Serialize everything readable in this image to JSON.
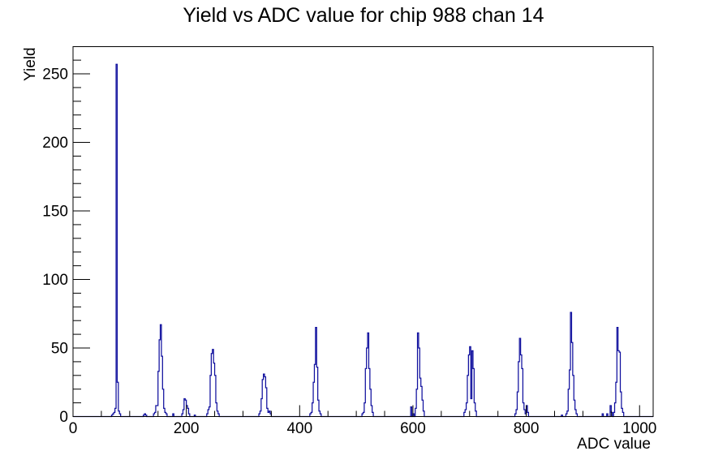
{
  "page": {
    "background": "#ffffff"
  },
  "chart_data": {
    "type": "bar",
    "subtype": "step-histogram",
    "title": "Yield vs ADC value for chip 988 chan 14",
    "xlabel": "ADC value",
    "ylabel": "Yield",
    "xlim": [
      0,
      1024
    ],
    "ylim": [
      0,
      269.85
    ],
    "x_major_ticks": [
      0,
      200,
      400,
      600,
      800,
      1000
    ],
    "x_minor_step": 50,
    "y_major_ticks": [
      0,
      50,
      100,
      150,
      200,
      250
    ],
    "y_minor_step": 10,
    "grid": false,
    "legend": false,
    "line_color": "#10109e",
    "axis_color": "#000000",
    "bin_width": 2,
    "bins": [
      [
        68,
        1
      ],
      [
        70,
        2
      ],
      [
        72,
        3
      ],
      [
        74,
        6
      ],
      [
        76,
        257
      ],
      [
        78,
        25
      ],
      [
        80,
        4
      ],
      [
        82,
        2
      ],
      [
        124,
        1
      ],
      [
        126,
        2
      ],
      [
        128,
        1
      ],
      [
        142,
        2
      ],
      [
        144,
        3
      ],
      [
        146,
        8
      ],
      [
        148,
        8
      ],
      [
        150,
        33
      ],
      [
        152,
        56
      ],
      [
        154,
        67
      ],
      [
        156,
        44
      ],
      [
        158,
        20
      ],
      [
        160,
        6
      ],
      [
        162,
        3
      ],
      [
        164,
        2
      ],
      [
        176,
        2
      ],
      [
        192,
        2
      ],
      [
        194,
        5
      ],
      [
        196,
        13
      ],
      [
        198,
        12
      ],
      [
        200,
        8
      ],
      [
        202,
        6
      ],
      [
        204,
        2
      ],
      [
        214,
        1
      ],
      [
        236,
        2
      ],
      [
        238,
        5
      ],
      [
        240,
        7
      ],
      [
        242,
        30
      ],
      [
        244,
        46
      ],
      [
        246,
        49
      ],
      [
        248,
        39
      ],
      [
        250,
        30
      ],
      [
        252,
        10
      ],
      [
        254,
        4
      ],
      [
        256,
        2
      ],
      [
        328,
        2
      ],
      [
        330,
        4
      ],
      [
        332,
        13
      ],
      [
        334,
        27
      ],
      [
        336,
        31
      ],
      [
        338,
        29
      ],
      [
        340,
        21
      ],
      [
        342,
        6
      ],
      [
        344,
        3
      ],
      [
        346,
        4
      ],
      [
        348,
        2
      ],
      [
        418,
        2
      ],
      [
        420,
        3
      ],
      [
        422,
        10
      ],
      [
        424,
        25
      ],
      [
        426,
        38
      ],
      [
        428,
        65
      ],
      [
        430,
        36
      ],
      [
        432,
        12
      ],
      [
        434,
        4
      ],
      [
        436,
        2
      ],
      [
        510,
        2
      ],
      [
        512,
        3
      ],
      [
        514,
        10
      ],
      [
        516,
        35
      ],
      [
        518,
        50
      ],
      [
        520,
        61
      ],
      [
        522,
        35
      ],
      [
        524,
        20
      ],
      [
        526,
        8
      ],
      [
        528,
        3
      ],
      [
        596,
        7
      ],
      [
        600,
        2
      ],
      [
        604,
        6
      ],
      [
        606,
        20
      ],
      [
        608,
        61
      ],
      [
        610,
        50
      ],
      [
        612,
        28
      ],
      [
        614,
        22
      ],
      [
        616,
        12
      ],
      [
        618,
        4
      ],
      [
        690,
        3
      ],
      [
        692,
        5
      ],
      [
        694,
        10
      ],
      [
        696,
        30
      ],
      [
        698,
        45
      ],
      [
        700,
        51
      ],
      [
        702,
        13
      ],
      [
        704,
        48
      ],
      [
        706,
        35
      ],
      [
        708,
        10
      ],
      [
        710,
        4
      ],
      [
        780,
        2
      ],
      [
        782,
        5
      ],
      [
        784,
        18
      ],
      [
        786,
        40
      ],
      [
        788,
        57
      ],
      [
        790,
        45
      ],
      [
        792,
        35
      ],
      [
        794,
        10
      ],
      [
        796,
        5
      ],
      [
        798,
        2
      ],
      [
        800,
        8
      ],
      [
        802,
        3
      ],
      [
        862,
        1
      ],
      [
        870,
        2
      ],
      [
        872,
        4
      ],
      [
        874,
        20
      ],
      [
        876,
        34
      ],
      [
        878,
        76
      ],
      [
        880,
        54
      ],
      [
        882,
        30
      ],
      [
        884,
        12
      ],
      [
        886,
        5
      ],
      [
        888,
        2
      ],
      [
        934,
        2
      ],
      [
        942,
        2
      ],
      [
        948,
        8
      ],
      [
        950,
        3
      ],
      [
        954,
        3
      ],
      [
        956,
        10
      ],
      [
        958,
        25
      ],
      [
        960,
        65
      ],
      [
        962,
        48
      ],
      [
        964,
        47
      ],
      [
        966,
        18
      ],
      [
        968,
        6
      ],
      [
        970,
        3
      ]
    ]
  }
}
